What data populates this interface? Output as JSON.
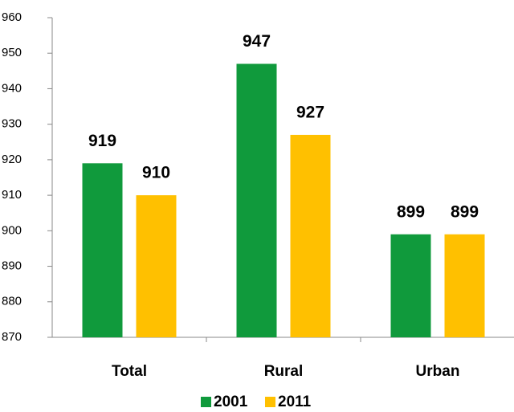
{
  "chart_data": {
    "type": "bar",
    "categories": [
      "Total",
      "Rural",
      "Urban"
    ],
    "series": [
      {
        "name": "2001",
        "color": "#109a3c",
        "values": [
          919,
          947,
          899
        ]
      },
      {
        "name": "2011",
        "color": "#ffc000",
        "values": [
          910,
          927,
          899
        ]
      }
    ],
    "ylim": [
      870,
      960
    ],
    "yticks": [
      870,
      880,
      890,
      900,
      910,
      920,
      930,
      940,
      950,
      960
    ],
    "grid": false,
    "legend": "bottom",
    "data_labels": true
  }
}
